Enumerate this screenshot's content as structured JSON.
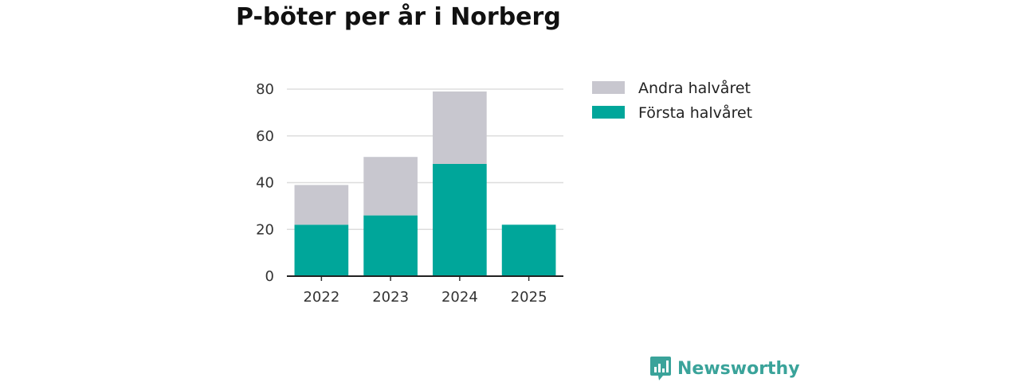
{
  "title": "P-böter per år i Norberg",
  "brand": {
    "name": "Newsworthy",
    "color": "#3aa39a"
  },
  "chart_data": {
    "type": "bar",
    "stacked": true,
    "categories": [
      "2022",
      "2023",
      "2024",
      "2025"
    ],
    "series": [
      {
        "name": "Första halvåret",
        "values": [
          22,
          26,
          48,
          22
        ],
        "color": "#00a69a"
      },
      {
        "name": "Andra halvåret",
        "values": [
          17,
          25,
          31,
          0
        ],
        "color": "#c8c7cf"
      }
    ],
    "ylim": [
      0,
      80
    ],
    "yticks": [
      0,
      20,
      40,
      60,
      80
    ],
    "grid": true,
    "legend_position": "right",
    "legend_order": [
      "Andra halvåret",
      "Första halvåret"
    ]
  }
}
